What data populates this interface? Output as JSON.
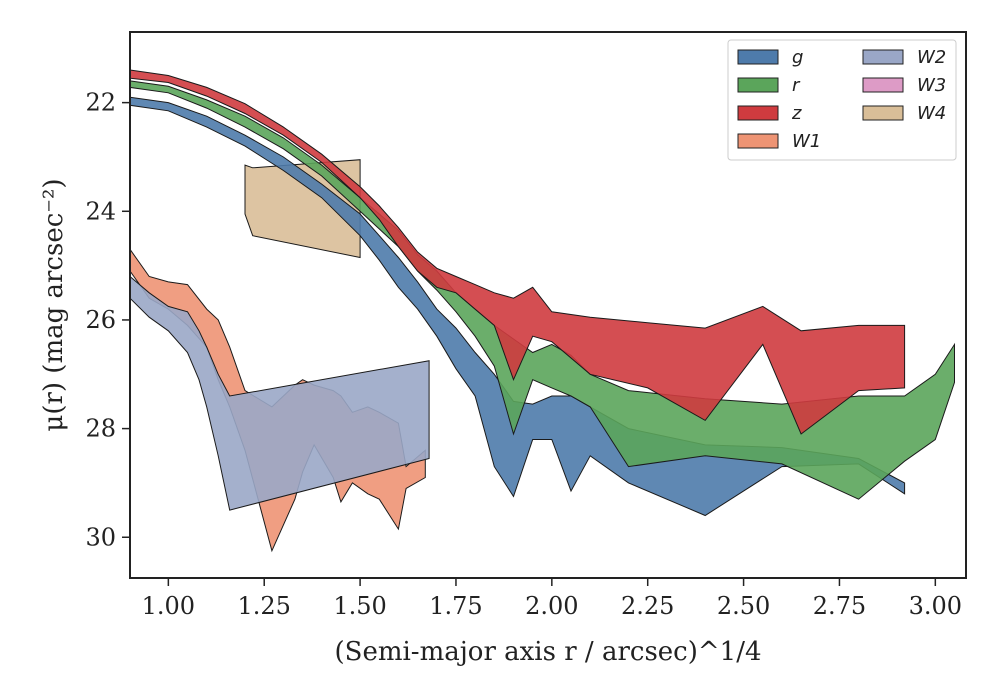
{
  "chart_data": {
    "type": "area",
    "xlabel": "(Semi-major axis r / arcsec)^1/4",
    "ylabel": "μ(r) (mag arcsec⁻²)",
    "xlim": [
      0.9,
      3.08
    ],
    "ylim": [
      30.75,
      20.7
    ],
    "y_inverted": true,
    "xticks": [
      1.0,
      1.25,
      1.5,
      1.75,
      2.0,
      2.25,
      2.5,
      2.75,
      3.0
    ],
    "xtick_labels": [
      "1.00",
      "1.25",
      "1.50",
      "1.75",
      "2.00",
      "2.25",
      "2.50",
      "2.75",
      "3.00"
    ],
    "yticks": [
      22,
      24,
      26,
      28,
      30
    ],
    "ytick_labels": [
      "22",
      "24",
      "26",
      "28",
      "30"
    ],
    "legend": {
      "placement": "top-right",
      "columns": 2
    },
    "series": [
      {
        "name": "W4",
        "color": "#d9be98",
        "x": [
          1.2,
          1.22,
          1.5
        ],
        "y_upper": [
          23.15,
          23.2,
          23.05
        ],
        "y_lower": [
          24.05,
          24.45,
          24.85
        ]
      },
      {
        "name": "W1",
        "color": "#ee9474",
        "x": [
          0.9,
          0.95,
          1.0,
          1.05,
          1.1,
          1.13,
          1.16,
          1.2,
          1.27,
          1.33,
          1.35,
          1.38,
          1.43,
          1.45,
          1.48,
          1.52,
          1.55,
          1.6,
          1.62,
          1.67
        ],
        "y_upper": [
          24.7,
          25.2,
          25.3,
          25.35,
          25.8,
          26.0,
          26.5,
          27.3,
          27.6,
          27.2,
          27.1,
          27.2,
          27.3,
          27.4,
          27.7,
          27.6,
          27.7,
          27.9,
          28.7,
          28.4
        ],
        "y_lower": [
          25.1,
          25.6,
          25.8,
          26.1,
          26.5,
          27.1,
          27.6,
          28.4,
          30.25,
          29.3,
          28.8,
          28.3,
          28.9,
          29.35,
          29.0,
          29.2,
          29.3,
          29.85,
          29.1,
          28.9
        ]
      },
      {
        "name": "W2",
        "color": "#9aa7c7",
        "x": [
          0.9,
          0.95,
          1.0,
          1.05,
          1.08,
          1.1,
          1.13,
          1.16,
          1.68
        ],
        "y_upper": [
          25.2,
          25.5,
          25.75,
          25.85,
          26.2,
          26.5,
          27.0,
          27.4,
          26.75
        ],
        "y_lower": [
          25.6,
          25.95,
          26.2,
          26.6,
          27.1,
          27.6,
          28.5,
          29.5,
          28.55
        ]
      },
      {
        "name": "g",
        "color": "#4e7bab",
        "x": [
          0.9,
          1.0,
          1.1,
          1.2,
          1.3,
          1.4,
          1.5,
          1.55,
          1.6,
          1.65,
          1.7,
          1.75,
          1.8,
          1.85,
          1.9,
          1.95,
          2.0,
          2.05,
          2.1,
          2.2,
          2.4,
          2.6,
          2.8,
          2.92
        ],
        "y_upper": [
          21.9,
          22.0,
          22.25,
          22.6,
          23.0,
          23.5,
          24.05,
          24.45,
          24.85,
          25.3,
          25.8,
          26.15,
          26.6,
          27.0,
          27.5,
          27.55,
          27.4,
          27.4,
          27.6,
          28.0,
          28.3,
          28.35,
          28.55,
          29.0
        ],
        "y_lower": [
          22.05,
          22.15,
          22.45,
          22.8,
          23.25,
          23.75,
          24.45,
          24.9,
          25.4,
          25.8,
          26.3,
          26.9,
          27.4,
          28.7,
          29.25,
          28.2,
          28.2,
          29.15,
          28.5,
          29.0,
          29.6,
          28.7,
          28.65,
          29.2
        ]
      },
      {
        "name": "r",
        "color": "#5ba55b",
        "x": [
          0.9,
          1.0,
          1.1,
          1.2,
          1.3,
          1.4,
          1.5,
          1.6,
          1.65,
          1.7,
          1.75,
          1.8,
          1.85,
          1.9,
          1.95,
          2.0,
          2.05,
          2.1,
          2.2,
          2.4,
          2.6,
          2.8,
          2.92,
          3.0,
          3.05
        ],
        "y_upper": [
          21.6,
          21.7,
          21.95,
          22.25,
          22.65,
          23.15,
          23.75,
          24.35,
          24.8,
          25.1,
          25.5,
          25.8,
          26.1,
          26.35,
          26.6,
          26.45,
          26.65,
          27.0,
          27.3,
          27.45,
          27.55,
          27.4,
          27.4,
          27.0,
          26.45
        ],
        "y_lower": [
          21.72,
          21.82,
          22.1,
          22.45,
          22.85,
          23.35,
          24.0,
          24.65,
          25.1,
          25.45,
          25.85,
          26.3,
          26.85,
          28.1,
          27.1,
          27.25,
          27.4,
          27.6,
          28.7,
          28.5,
          28.65,
          29.3,
          28.6,
          28.2,
          27.15
        ]
      },
      {
        "name": "z",
        "color": "#cf3b3f",
        "x": [
          0.9,
          1.0,
          1.1,
          1.2,
          1.3,
          1.4,
          1.5,
          1.55,
          1.6,
          1.65,
          1.7,
          1.75,
          1.8,
          1.85,
          1.9,
          1.95,
          2.0,
          2.1,
          2.25,
          2.4,
          2.55,
          2.65,
          2.8,
          2.92
        ],
        "y_upper": [
          21.4,
          21.5,
          21.72,
          22.02,
          22.45,
          22.95,
          23.55,
          23.9,
          24.3,
          24.75,
          25.05,
          25.2,
          25.35,
          25.5,
          25.6,
          25.4,
          25.85,
          25.95,
          26.05,
          26.15,
          25.75,
          26.2,
          26.1,
          26.1
        ],
        "y_lower": [
          21.55,
          21.63,
          21.88,
          22.2,
          22.6,
          23.1,
          23.75,
          24.15,
          24.65,
          25.1,
          25.4,
          25.5,
          25.8,
          26.1,
          27.1,
          26.3,
          26.4,
          27.0,
          27.25,
          27.85,
          26.45,
          28.1,
          27.3,
          27.25
        ]
      },
      {
        "name": "W3",
        "color": "#dd9bc6",
        "x": [],
        "y_upper": [],
        "y_lower": []
      }
    ],
    "legend_entries": [
      {
        "label": "g",
        "color": "#4e7bab"
      },
      {
        "label": "r",
        "color": "#5ba55b"
      },
      {
        "label": "z",
        "color": "#cf3b3f"
      },
      {
        "label": "W1",
        "color": "#ee9474"
      },
      {
        "label": "W2",
        "color": "#9aa7c7"
      },
      {
        "label": "W3",
        "color": "#dd9bc6"
      },
      {
        "label": "W4",
        "color": "#d9be98"
      }
    ]
  }
}
